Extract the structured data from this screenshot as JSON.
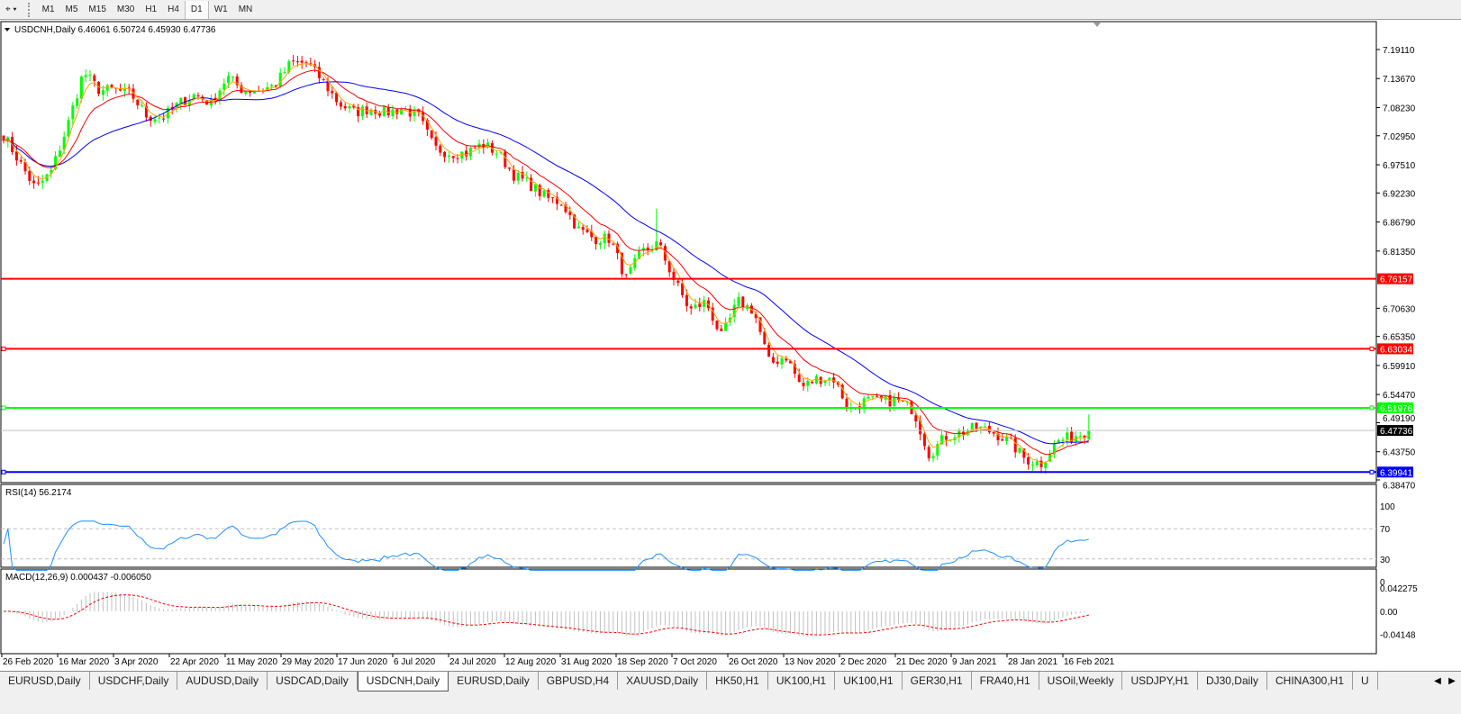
{
  "toolbar": {
    "timeframes": [
      "M1",
      "M5",
      "M15",
      "M30",
      "H1",
      "H4",
      "D1",
      "W1",
      "MN"
    ],
    "active": "D1"
  },
  "chart": {
    "header": "USDCNH,Daily  6.46061 6.50724 6.45930 6.47736",
    "symbol": "USDCNH,Daily",
    "ohlc": {
      "open": "6.46061",
      "high": "6.50724",
      "low": "6.45930",
      "close": "6.47736"
    },
    "price_ticks": [
      "7.19110",
      "7.13670",
      "7.08230",
      "7.02950",
      "6.97510",
      "6.92230",
      "6.86790",
      "6.81350",
      "6.70630",
      "6.65350",
      "6.59910",
      "6.54470",
      "6.49190",
      "6.43750",
      "6.38470"
    ],
    "levels": [
      {
        "value": "6.76157",
        "color": "#ff0000"
      },
      {
        "value": "6.63034",
        "color": "#ff0000"
      },
      {
        "value": "6.51976",
        "color": "#00ff00"
      },
      {
        "value": "6.39941",
        "color": "#0000ff"
      }
    ],
    "current_price": {
      "value": "6.47736",
      "color": "#000000"
    },
    "date_labels": [
      "26 Feb 2020",
      "16 Mar 2020",
      "3 Apr 2020",
      "22 Apr 2020",
      "11 May 2020",
      "29 May 2020",
      "17 Jun 2020",
      "6 Jul 2020",
      "24 Jul 2020",
      "12 Aug 2020",
      "31 Aug 2020",
      "18 Sep 2020",
      "7 Oct 2020",
      "26 Oct 2020",
      "13 Nov 2020",
      "2 Dec 2020",
      "21 Dec 2020",
      "9 Jan 2021",
      "28 Jan 2021",
      "16 Feb 2021"
    ],
    "colors": {
      "bull": "#00ff00",
      "bear": "#ff0000",
      "ma_slow": "#0000ff",
      "ma_mid": "#ff0000",
      "ma_fast": "#ffa500",
      "rsi": "#1e90ff",
      "macd_hist": "#c0c0c0",
      "macd_signal": "#ff0000"
    },
    "rsi": {
      "label": "RSI(14) 56.2174",
      "ticks": [
        "100",
        "70",
        "30",
        "0"
      ]
    },
    "macd": {
      "label": "MACD(12,26,9) 0.000437 -0.006050",
      "ticks": [
        "0.042275",
        "0.00",
        "-0.04148"
      ]
    }
  },
  "chart_data": {
    "type": "candlestick",
    "title": "USDCNH,Daily",
    "x_range": [
      "26 Feb 2020",
      "22 Feb 2021"
    ],
    "ylim": [
      6.3847,
      7.1911
    ],
    "approx_close_path": [
      7.031,
      6.98,
      6.93,
      6.963,
      7.048,
      7.149,
      7.115,
      7.115,
      7.107,
      7.065,
      7.065,
      7.09,
      7.107,
      7.09,
      7.14,
      7.115,
      7.115,
      7.124,
      7.166,
      7.166,
      7.132,
      7.09,
      7.073,
      7.081,
      7.073,
      7.081,
      7.065,
      7.006,
      6.997,
      6.997,
      7.014,
      6.997,
      6.955,
      6.938,
      6.913,
      6.904,
      6.854,
      6.837,
      6.837,
      6.761,
      6.812,
      6.828,
      6.761,
      6.702,
      6.719,
      6.651,
      6.719,
      6.702,
      6.601,
      6.618,
      6.558,
      6.575,
      6.575,
      6.516,
      6.533,
      6.533,
      6.533,
      6.516,
      6.432,
      6.466,
      6.474,
      6.483,
      6.474,
      6.457,
      6.424,
      6.415,
      6.457,
      6.466,
      6.477
    ]
  },
  "tabs": [
    "EURUSD,Daily",
    "USDCHF,Daily",
    "AUDUSD,Daily",
    "USDCAD,Daily",
    "USDCNH,Daily",
    "EURUSD,Daily",
    "GBPUSD,H4",
    "XAUUSD,Daily",
    "HK50,H1",
    "UK100,H1",
    "UK100,H1",
    "GER30,H1",
    "FRA40,H1",
    "USOil,Weekly",
    "USDJPY,H1",
    "DJ30,Daily",
    "CHINA300,H1",
    "U"
  ],
  "active_tab": "USDCNH,Daily"
}
